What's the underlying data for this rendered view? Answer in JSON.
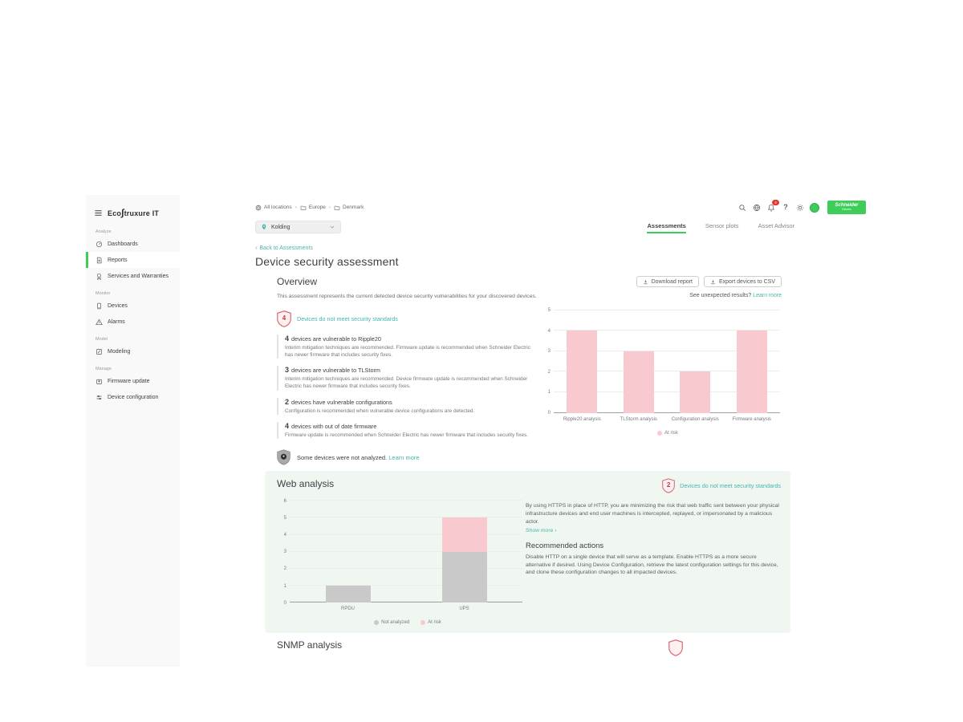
{
  "colors": {
    "accent_green": "#3dcd58",
    "teal_link": "#45b5ab",
    "risk_pink": "#f8c9cf",
    "gray_bar": "#c9c9c9",
    "badge_red": "#dd6b77",
    "web_section_bg": "#f0f7f1"
  },
  "sidebar": {
    "logo": {
      "prefix": "Eco",
      "glyph": "∫",
      "suffix": "truxure IT"
    },
    "sections": [
      {
        "label": "Analyze",
        "items": [
          {
            "label": "Dashboards"
          },
          {
            "label": "Reports"
          },
          {
            "label": "Services and Warranties"
          }
        ]
      },
      {
        "label": "Monitor",
        "items": [
          {
            "label": "Devices"
          },
          {
            "label": "Alarms"
          }
        ]
      },
      {
        "label": "Model",
        "items": [
          {
            "label": "Modeling"
          }
        ]
      },
      {
        "label": "Manage",
        "items": [
          {
            "label": "Firmware update"
          },
          {
            "label": "Device configuration"
          }
        ]
      }
    ]
  },
  "header": {
    "breadcrumb": {
      "separator": "›",
      "items": [
        {
          "label": "All locations"
        },
        {
          "label": "Europe"
        },
        {
          "label": "Denmark"
        }
      ]
    },
    "location_selector": {
      "value": "Kolding"
    },
    "notification_count": "4",
    "help_glyph": "?",
    "brand": {
      "line1": "Schneider",
      "line2": "Electric"
    }
  },
  "tabs": [
    {
      "label": "Assessments"
    },
    {
      "label": "Sensor plots"
    },
    {
      "label": "Asset Advisor"
    }
  ],
  "page": {
    "back_chevron": "‹",
    "back_link": "Back to Assessments",
    "title": "Device security assessment"
  },
  "overview": {
    "heading": "Overview",
    "description": "This assessment represents the current detected device security vulnerabilities for your discovered devices.",
    "download_button": "Download report",
    "export_button": "Export devices to CSV",
    "unexpected_text": "See unexpected results?",
    "unexpected_link": "Learn more",
    "badge": {
      "count": "4",
      "label": "Devices do not meet security standards"
    },
    "findings": [
      {
        "count": "4",
        "title": "devices are vulnerable to Ripple20",
        "description": "Interim mitigation techniques are recommended. Firmware update is recommended when Schneider Electric has newer firmware that includes security fixes."
      },
      {
        "count": "3",
        "title": "devices are vulnerable to TLStorm",
        "description": "Interim mitigation techniques are recommended. Device firmware update is recommended when Schneider Electric has newer firmware that includes security fixes."
      },
      {
        "count": "2",
        "title": "devices have vulnerable configurations",
        "description": "Configuration is recommended when vulnerable device configurations are detected."
      },
      {
        "count": "4",
        "title": "devices with out of date firmware",
        "description": "Firmware update is recommended when Schneider Electric has newer firmware that includes security fixes."
      }
    ],
    "not_analyzed": {
      "text": "Some devices were not analyzed.",
      "link": "Learn more"
    }
  },
  "web_analysis": {
    "heading": "Web analysis",
    "badge": {
      "count": "2",
      "label": "Devices do not meet security standards"
    },
    "description": "By using HTTPS in place of HTTP, you are minimizing the risk that web traffic sent between your physical infrastructure devices and end user machines is intercepted, replayed, or impersonated by a malicious actor.",
    "show_more": "Show more ›",
    "recommended_heading": "Recommended actions",
    "recommended_text": "Disable HTTP on a single device that will serve as a template. Enable HTTPS as a more secure alternative if desired. Using Device Configuration, retrieve the latest configuration settings for this device, and clone these configuration changes to all impacted devices."
  },
  "snmp": {
    "heading": "SNMP analysis"
  },
  "chart_data": [
    {
      "type": "bar",
      "title": "Overview - devices at risk by analysis",
      "categories": [
        "Ripple20 analysis",
        "TLStorm analysis",
        "Configuration analysis",
        "Firmware analysis"
      ],
      "series": [
        {
          "name": "At risk",
          "values": [
            4,
            3,
            2,
            4
          ],
          "color": "#f8c9cf"
        }
      ],
      "ylim": [
        0,
        5
      ],
      "yticks": [
        0,
        1,
        2,
        3,
        4,
        5
      ],
      "grid": true,
      "legend_position": "bottom"
    },
    {
      "type": "bar",
      "stacked": true,
      "title": "Web analysis - devices by type",
      "categories": [
        "RPDU",
        "UPS"
      ],
      "series": [
        {
          "name": "Not analyzed",
          "values": [
            1,
            3
          ],
          "color": "#c9c9c9"
        },
        {
          "name": "At risk",
          "values": [
            0,
            2
          ],
          "color": "#f8c9cf"
        }
      ],
      "ylim": [
        0,
        6
      ],
      "yticks": [
        0,
        1,
        2,
        3,
        4,
        5,
        6
      ],
      "grid": true,
      "legend_position": "bottom"
    }
  ]
}
